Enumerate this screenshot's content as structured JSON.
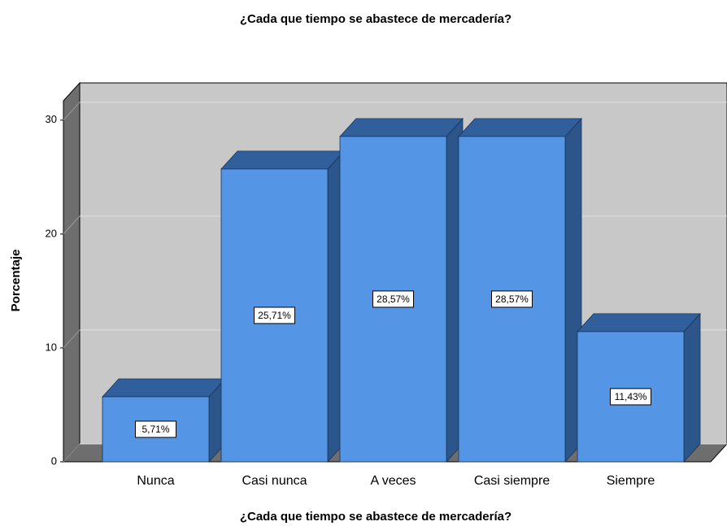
{
  "chart_data": {
    "type": "bar3d",
    "title": "¿Cada que tiempo se abastece de mercadería?",
    "xlabel": "¿Cada que tiempo se abastece de mercadería?",
    "ylabel": "Porcentaje",
    "categories": [
      "Nunca",
      "Casi nunca",
      "A veces",
      "Casi siempre",
      "Siempre"
    ],
    "values": [
      5.71,
      25.71,
      28.57,
      28.57,
      11.43
    ],
    "value_labels": [
      "5,71%",
      "25,71%",
      "28,57%",
      "28,57%",
      "11,43%"
    ],
    "color": "#5595e5",
    "ylim": [
      0,
      31.7
    ],
    "yticks": [
      0,
      10,
      20,
      30
    ],
    "grid": true
  }
}
